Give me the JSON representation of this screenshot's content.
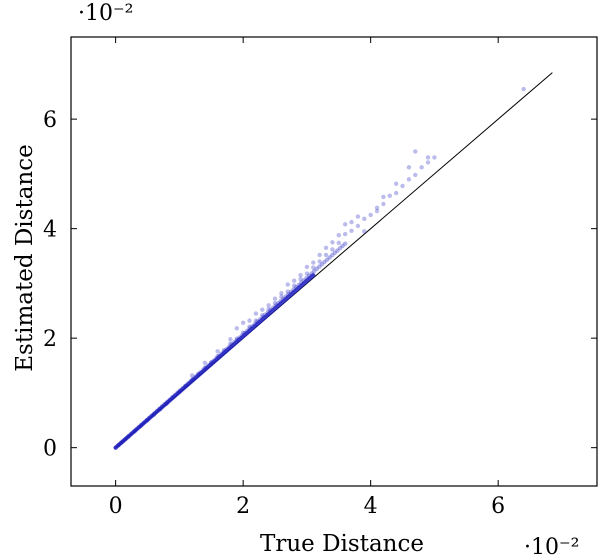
{
  "chart_data": {
    "type": "scatter",
    "xlabel": "True Distance",
    "ylabel": "Estimated Distance",
    "x_multiplier_label": "·10⁻²",
    "y_multiplier_label": "·10⁻²",
    "xlim": [
      -0.007,
      0.0755
    ],
    "ylim": [
      -0.007,
      0.075
    ],
    "x_ticks": [
      {
        "value": 0.0,
        "label": "0"
      },
      {
        "value": 0.02,
        "label": "2"
      },
      {
        "value": 0.04,
        "label": "4"
      },
      {
        "value": 0.06,
        "label": "6"
      }
    ],
    "y_ticks": [
      {
        "value": 0.0,
        "label": "0"
      },
      {
        "value": 0.02,
        "label": "2"
      },
      {
        "value": 0.04,
        "label": "4"
      },
      {
        "value": 0.06,
        "label": "6"
      }
    ],
    "grid": false,
    "reference_line": {
      "x": [
        0.0,
        0.0685
      ],
      "y": [
        0.0,
        0.0685
      ],
      "color": "#000000"
    },
    "point_color": "#1f1fbf",
    "points": {
      "x": [
        0.0005,
        0.001,
        0.0015,
        0.002,
        0.003,
        0.004,
        0.005,
        0.006,
        0.007,
        0.008,
        0.009,
        0.01,
        0.011,
        0.012,
        0.013,
        0.014,
        0.015,
        0.016,
        0.017,
        0.018,
        0.019,
        0.02,
        0.021,
        0.022,
        0.023,
        0.024,
        0.025,
        0.026,
        0.027,
        0.028,
        0.029,
        0.03,
        0.031,
        0.032,
        0.033,
        0.034,
        0.035,
        0.036,
        0.037,
        0.038,
        0.039,
        0.04,
        0.041,
        0.042,
        0.043,
        0.044,
        0.045,
        0.046,
        0.047,
        0.048,
        0.049,
        0.05,
        0.012,
        0.014,
        0.016,
        0.018,
        0.02,
        0.022,
        0.024,
        0.026,
        0.027,
        0.028,
        0.03,
        0.032,
        0.034,
        0.035,
        0.036,
        0.037,
        0.038,
        0.039,
        0.041,
        0.042,
        0.044,
        0.046,
        0.047,
        0.049,
        0.064,
        0.019,
        0.021,
        0.023,
        0.025,
        0.029,
        0.031,
        0.033
      ],
      "y": [
        0.0005,
        0.001,
        0.0015,
        0.002,
        0.003,
        0.004,
        0.005,
        0.006,
        0.007,
        0.008,
        0.0092,
        0.0102,
        0.0113,
        0.0124,
        0.0135,
        0.0146,
        0.0156,
        0.0167,
        0.0178,
        0.019,
        0.0199,
        0.021,
        0.0221,
        0.0232,
        0.0242,
        0.0253,
        0.0264,
        0.0276,
        0.0285,
        0.0296,
        0.0308,
        0.0318,
        0.0329,
        0.034,
        0.0352,
        0.0362,
        0.0374,
        0.039,
        0.0396,
        0.0405,
        0.0418,
        0.0425,
        0.0438,
        0.0445,
        0.046,
        0.0465,
        0.0478,
        0.049,
        0.0498,
        0.0512,
        0.0521,
        0.053,
        0.0132,
        0.0155,
        0.0176,
        0.0198,
        0.0228,
        0.0245,
        0.026,
        0.0282,
        0.0298,
        0.0305,
        0.033,
        0.0352,
        0.0375,
        0.0388,
        0.0408,
        0.0412,
        0.0422,
        0.0395,
        0.0432,
        0.0458,
        0.0482,
        0.0512,
        0.0541,
        0.053,
        0.0655,
        0.0218,
        0.0232,
        0.0252,
        0.0272,
        0.0315,
        0.0338,
        0.0365
      ]
    }
  }
}
